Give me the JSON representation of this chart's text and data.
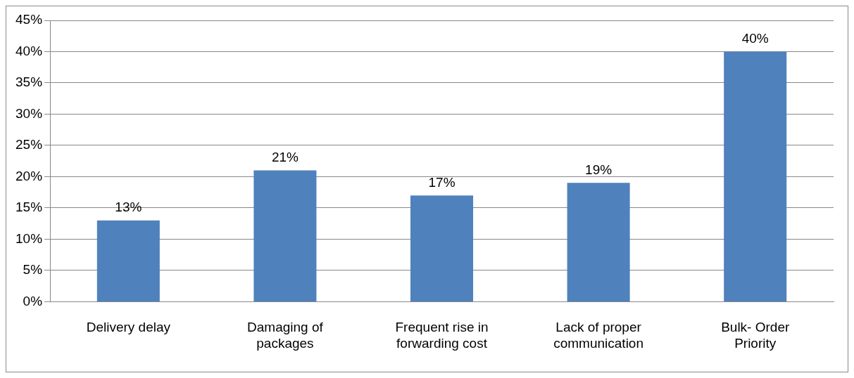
{
  "chart_data": {
    "type": "bar",
    "categories": [
      "Delivery delay",
      "Damaging of packages",
      "Frequent rise in forwarding cost",
      "Lack of proper communication",
      "Bulk- Order Priority"
    ],
    "values": [
      13,
      21,
      17,
      19,
      40
    ],
    "color": "#4f81bd",
    "value_labels": [
      "13%",
      "21%",
      "17%",
      "19%",
      "40%"
    ],
    "ylim": [
      0,
      45
    ],
    "yticks": [
      {
        "value": 0,
        "label": "0%"
      },
      {
        "value": 5,
        "label": "5%"
      },
      {
        "value": 10,
        "label": "10%"
      },
      {
        "value": 15,
        "label": "15%"
      },
      {
        "value": 20,
        "label": "20%"
      },
      {
        "value": 25,
        "label": "25%"
      },
      {
        "value": 30,
        "label": "30%"
      },
      {
        "value": 35,
        "label": "35%"
      },
      {
        "value": 40,
        "label": "40%"
      },
      {
        "value": 45,
        "label": "45%"
      }
    ],
    "grid": "y",
    "legend": false
  }
}
